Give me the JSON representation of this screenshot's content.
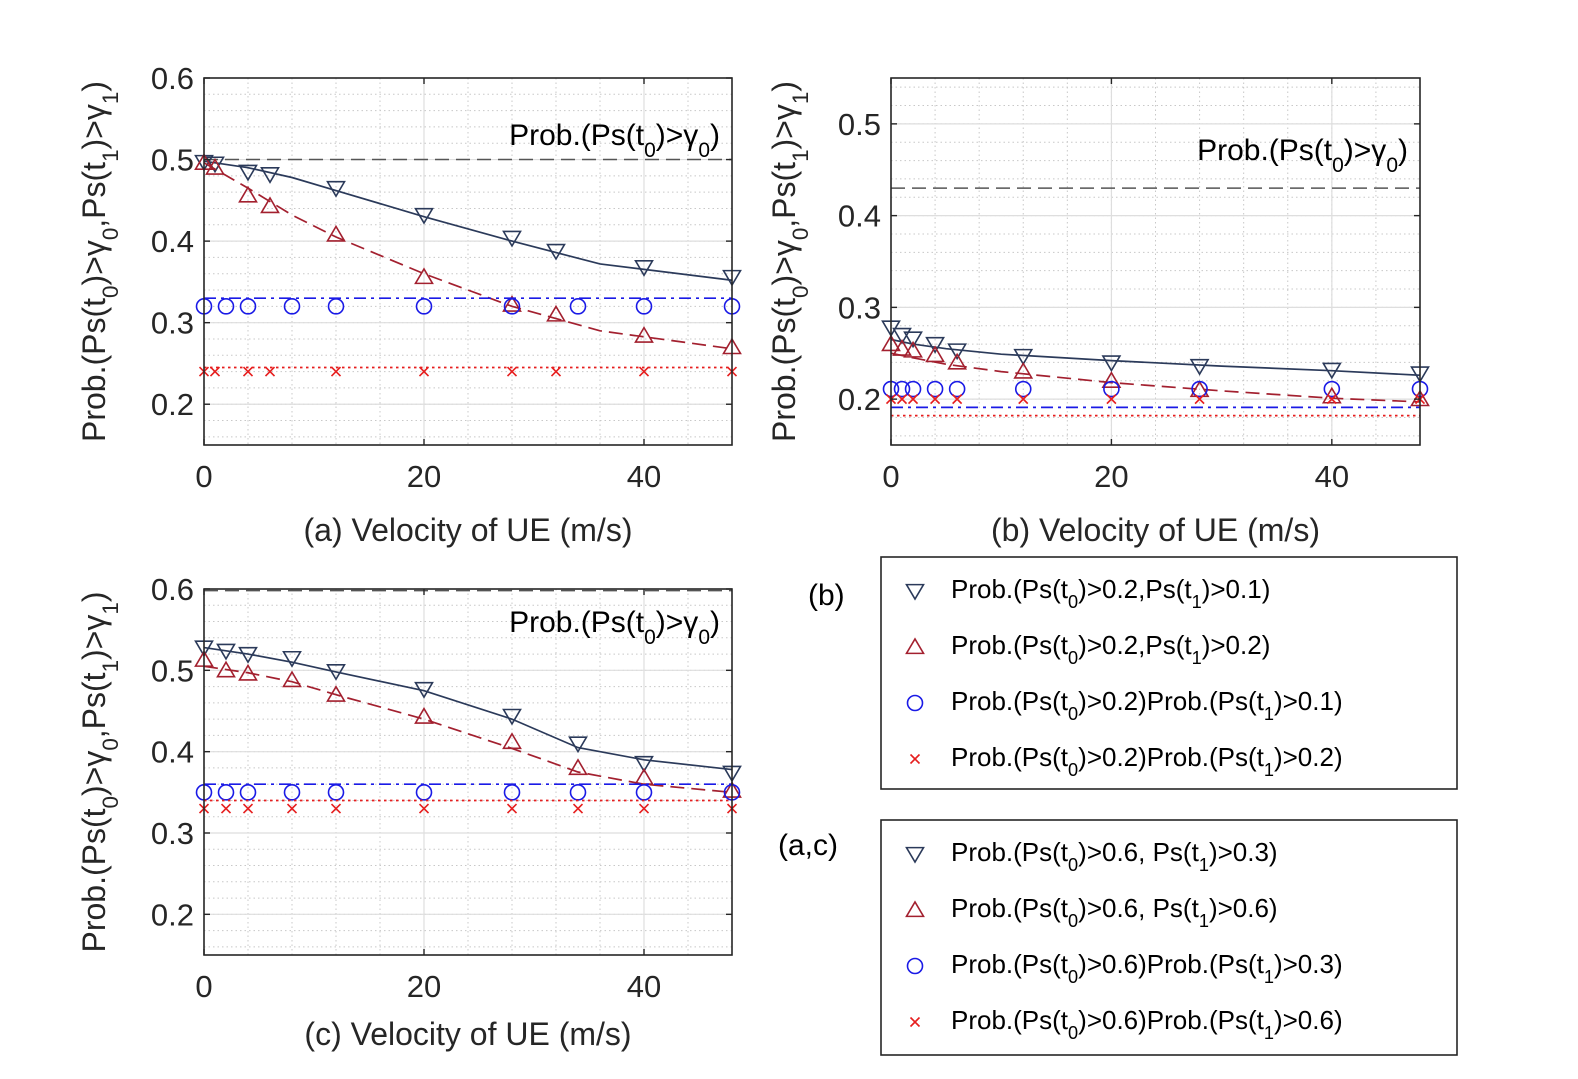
{
  "chart_data": [
    {
      "id": "a",
      "type": "line",
      "xlabel": "(a) Velocity of UE (m/s)",
      "ylabel": "Prob.(Ps(t0)>γ0,Ps(t1)>γ1)",
      "xlim": [
        0,
        48
      ],
      "ylim": [
        0.15,
        0.6
      ],
      "xticks": [
        0,
        20,
        40
      ],
      "yticks": [
        0.2,
        0.3,
        0.4,
        0.5,
        0.6
      ],
      "annotation": "Prob.(Ps(t0)>γ0)",
      "reference_line": 0.5,
      "series": [
        {
          "name": "Prob.(Ps(t0)>0.6, Ps(t1)>0.3)",
          "marker": "tri-down",
          "color": "#2b3a5a",
          "line": {
            "x": [
              0,
              4,
              8,
              12,
              20,
              28,
              36,
              48
            ],
            "y": [
              0.498,
              0.49,
              0.478,
              0.462,
              0.43,
              0.4,
              0.372,
              0.352
            ],
            "dash": "solid"
          },
          "points": {
            "x": [
              0,
              1,
              4,
              6,
              12,
              20,
              28,
              32,
              40,
              48
            ],
            "y": [
              0.497,
              0.495,
              0.485,
              0.482,
              0.465,
              0.432,
              0.404,
              0.388,
              0.368,
              0.356
            ]
          }
        },
        {
          "name": "Prob.(Ps(t0)>0.6, Ps(t1)>0.6)",
          "marker": "tri-up",
          "color": "#a3202f",
          "line": {
            "x": [
              0,
              4,
              8,
              12,
              20,
              28,
              36,
              48
            ],
            "y": [
              0.496,
              0.465,
              0.432,
              0.405,
              0.36,
              0.32,
              0.29,
              0.268
            ],
            "dash": "dashed"
          },
          "points": {
            "x": [
              0,
              1,
              4,
              6,
              12,
              20,
              28,
              32,
              40,
              48
            ],
            "y": [
              0.496,
              0.49,
              0.456,
              0.443,
              0.408,
              0.356,
              0.322,
              0.31,
              0.284,
              0.27
            ]
          }
        },
        {
          "name": "Prob.(Ps(t0)>0.6)Prob.(Ps(t1)>0.3)",
          "marker": "circle",
          "color": "#1a1ae6",
          "line": {
            "x": [
              0,
              48
            ],
            "y": [
              0.33,
              0.33
            ],
            "dash": "dashdot"
          },
          "points": {
            "x": [
              0,
              2,
              4,
              8,
              12,
              20,
              28,
              34,
              40,
              48
            ],
            "y": [
              0.32,
              0.32,
              0.32,
              0.32,
              0.32,
              0.32,
              0.32,
              0.32,
              0.32,
              0.32
            ]
          }
        },
        {
          "name": "Prob.(Ps(t0)>0.6)Prob.(Ps(t1)>0.6)",
          "marker": "x",
          "color": "#e61e1e",
          "line": {
            "x": [
              0,
              48
            ],
            "y": [
              0.245,
              0.245
            ],
            "dash": "dotted"
          },
          "points": {
            "x": [
              0,
              1,
              4,
              6,
              12,
              20,
              28,
              32,
              40,
              48
            ],
            "y": [
              0.24,
              0.24,
              0.24,
              0.24,
              0.24,
              0.24,
              0.24,
              0.24,
              0.24,
              0.24
            ]
          }
        }
      ]
    },
    {
      "id": "b",
      "type": "line",
      "xlabel": "(b) Velocity of UE (m/s)",
      "ylabel": "Prob.(Ps(t0)>γ0,Ps(t1)>γ1)",
      "xlim": [
        0,
        48
      ],
      "ylim": [
        0.15,
        0.55
      ],
      "xticks": [
        0,
        20,
        40
      ],
      "yticks": [
        0.2,
        0.3,
        0.4,
        0.5
      ],
      "annotation": "Prob.(Ps(t0)>γ0)",
      "reference_line": 0.43,
      "series": [
        {
          "name": "Prob.(Ps(t0)>0.2,Ps(t1)>0.1)",
          "marker": "tri-down",
          "color": "#2b3a5a",
          "line": {
            "x": [
              0,
              2,
              5,
              10,
              20,
              30,
              40,
              48
            ],
            "y": [
              0.265,
              0.26,
              0.255,
              0.249,
              0.242,
              0.236,
              0.231,
              0.226
            ],
            "dash": "solid"
          },
          "points": {
            "x": [
              0,
              1,
              2,
              4,
              6,
              12,
              20,
              28,
              40,
              48
            ],
            "y": [
              0.278,
              0.27,
              0.266,
              0.26,
              0.253,
              0.247,
              0.24,
              0.236,
              0.232,
              0.228
            ]
          }
        },
        {
          "name": "Prob.(Ps(t0)>0.2,Ps(t1)>0.2)",
          "marker": "tri-up",
          "color": "#a3202f",
          "line": {
            "x": [
              0,
              2,
              5,
              10,
              20,
              30,
              40,
              48
            ],
            "y": [
              0.25,
              0.245,
              0.238,
              0.23,
              0.218,
              0.209,
              0.201,
              0.197
            ],
            "dash": "dashed"
          },
          "points": {
            "x": [
              0,
              1,
              2,
              4,
              6,
              12,
              20,
              28,
              40,
              48
            ],
            "y": [
              0.26,
              0.255,
              0.253,
              0.248,
              0.24,
              0.23,
              0.22,
              0.21,
              0.203,
              0.2
            ]
          }
        },
        {
          "name": "Prob.(Ps(t0)>0.2)Prob.(Ps(t1)>0.1)",
          "marker": "circle",
          "color": "#1a1ae6",
          "line": {
            "x": [
              0,
              48
            ],
            "y": [
              0.191,
              0.191
            ],
            "dash": "dashdot"
          },
          "points": {
            "x": [
              0,
              1,
              2,
              4,
              6,
              12,
              20,
              28,
              40,
              48
            ],
            "y": [
              0.211,
              0.211,
              0.211,
              0.211,
              0.211,
              0.211,
              0.211,
              0.211,
              0.211,
              0.211
            ]
          }
        },
        {
          "name": "Prob.(Ps(t0)>0.2)Prob.(Ps(t1)>0.2)",
          "marker": "x",
          "color": "#e61e1e",
          "line": {
            "x": [
              0,
              48
            ],
            "y": [
              0.182,
              0.182
            ],
            "dash": "dotted"
          },
          "points": {
            "x": [
              0,
              1,
              2,
              4,
              6,
              12,
              20,
              28,
              40,
              48
            ],
            "y": [
              0.2,
              0.2,
              0.2,
              0.2,
              0.2,
              0.2,
              0.2,
              0.2,
              0.2,
              0.2
            ]
          }
        }
      ]
    },
    {
      "id": "c",
      "type": "line",
      "xlabel": "(c) Velocity of UE (m/s)",
      "ylabel": "Prob.(Ps(t0)>γ0,Ps(t1)>γ1)",
      "xlim": [
        0,
        48
      ],
      "ylim": [
        0.15,
        0.6
      ],
      "xticks": [
        0,
        20,
        40
      ],
      "yticks": [
        0.2,
        0.3,
        0.4,
        0.5,
        0.6
      ],
      "annotation": "Prob.(Ps(t0)>γ0)",
      "reference_line": 0.598,
      "series": [
        {
          "name": "Prob.(Ps(t0)>0.6, Ps(t1)>0.3)",
          "marker": "tri-down",
          "color": "#2b3a5a",
          "line": {
            "x": [
              0,
              4,
              8,
              12,
              20,
              28,
              34,
              40,
              48
            ],
            "y": [
              0.528,
              0.52,
              0.51,
              0.498,
              0.475,
              0.44,
              0.405,
              0.39,
              0.378
            ],
            "dash": "solid"
          },
          "points": {
            "x": [
              0,
              2,
              4,
              8,
              12,
              20,
              28,
              34,
              40,
              48
            ],
            "y": [
              0.528,
              0.524,
              0.52,
              0.515,
              0.499,
              0.477,
              0.444,
              0.41,
              0.386,
              0.374
            ]
          }
        },
        {
          "name": "Prob.(Ps(t0)>0.6, Ps(t1)>0.6)",
          "marker": "tri-up",
          "color": "#a3202f",
          "line": {
            "x": [
              0,
              4,
              8,
              12,
              20,
              28,
              34,
              40,
              48
            ],
            "y": [
              0.505,
              0.497,
              0.486,
              0.47,
              0.44,
              0.404,
              0.375,
              0.36,
              0.35
            ],
            "dash": "dashed"
          },
          "points": {
            "x": [
              0,
              2,
              4,
              8,
              12,
              20,
              28,
              34,
              40,
              48
            ],
            "y": [
              0.513,
              0.5,
              0.496,
              0.488,
              0.47,
              0.443,
              0.412,
              0.38,
              0.368,
              0.352
            ]
          }
        },
        {
          "name": "Prob.(Ps(t0)>0.6)Prob.(Ps(t1)>0.3)",
          "marker": "circle",
          "color": "#1a1ae6",
          "line": {
            "x": [
              0,
              48
            ],
            "y": [
              0.36,
              0.36
            ],
            "dash": "dashdot"
          },
          "points": {
            "x": [
              0,
              2,
              4,
              8,
              12,
              20,
              28,
              34,
              40,
              48
            ],
            "y": [
              0.35,
              0.35,
              0.35,
              0.35,
              0.35,
              0.35,
              0.35,
              0.35,
              0.35,
              0.35
            ]
          }
        },
        {
          "name": "Prob.(Ps(t0)>0.6)Prob.(Ps(t1)>0.6)",
          "marker": "x",
          "color": "#e61e1e",
          "line": {
            "x": [
              0,
              48
            ],
            "y": [
              0.34,
              0.34
            ],
            "dash": "dotted"
          },
          "points": {
            "x": [
              0,
              2,
              4,
              8,
              12,
              20,
              28,
              34,
              40,
              48
            ],
            "y": [
              0.33,
              0.33,
              0.33,
              0.33,
              0.33,
              0.33,
              0.33,
              0.33,
              0.33,
              0.33
            ]
          }
        }
      ]
    }
  ],
  "legends": [
    {
      "tag": "(b)",
      "entries": [
        {
          "marker": "tri-down",
          "color": "#2b3a5a",
          "label": "Prob.(Ps(t0)>0.2,Ps(t1)>0.1)"
        },
        {
          "marker": "tri-up",
          "color": "#a3202f",
          "label": "Prob.(Ps(t0)>0.2,Ps(t1)>0.2)"
        },
        {
          "marker": "circle",
          "color": "#1a1ae6",
          "label": "Prob.(Ps(t0)>0.2)Prob.(Ps(t1)>0.1)"
        },
        {
          "marker": "x",
          "color": "#e61e1e",
          "label": "Prob.(Ps(t0)>0.2)Prob.(Ps(t1)>0.2)"
        }
      ]
    },
    {
      "tag": "(a,c)",
      "entries": [
        {
          "marker": "tri-down",
          "color": "#2b3a5a",
          "label": "Prob.(Ps(t0)>0.6, Ps(t1)>0.3)"
        },
        {
          "marker": "tri-up",
          "color": "#a3202f",
          "label": "Prob.(Ps(t0)>0.6, Ps(t1)>0.6)"
        },
        {
          "marker": "circle",
          "color": "#1a1ae6",
          "label": "Prob.(Ps(t0)>0.6)Prob.(Ps(t1)>0.3)"
        },
        {
          "marker": "x",
          "color": "#e61e1e",
          "label": "Prob.(Ps(t0)>0.6)Prob.(Ps(t1)>0.6)"
        }
      ]
    }
  ]
}
